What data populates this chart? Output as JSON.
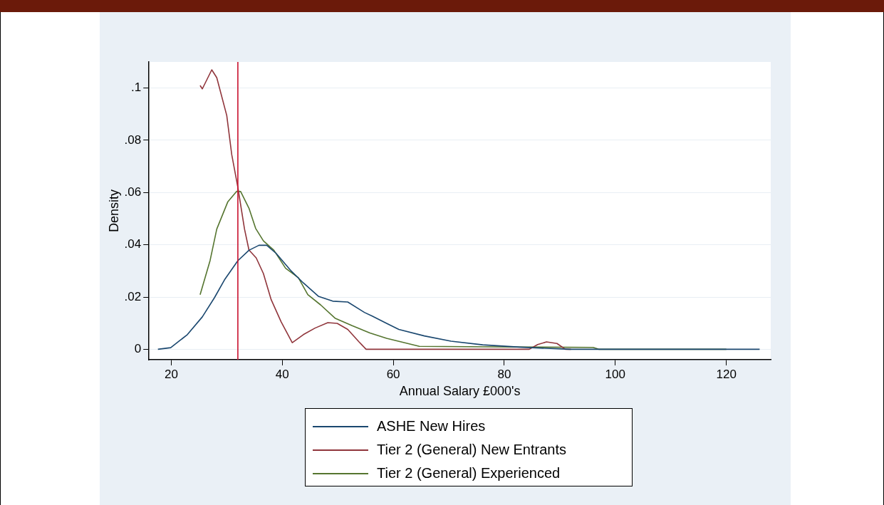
{
  "chart_data": {
    "type": "line",
    "xlabel": "Annual Salary £000's",
    "ylabel": "Density",
    "xlim": [
      16,
      128
    ],
    "ylim": [
      -0.004,
      0.11
    ],
    "xticks": [
      20,
      40,
      60,
      80,
      100,
      120
    ],
    "yticks": [
      0,
      {
        "value": 0.02,
        "label": ".02"
      },
      {
        "value": 0.04,
        "label": ".04"
      },
      {
        "value": 0.06,
        "label": ".06"
      },
      {
        "value": 0.08,
        "label": ".08"
      },
      {
        "value": 0.1,
        "label": ".1"
      }
    ],
    "grid": "y",
    "legend": "bottom",
    "marker": "none",
    "line_style": "solid",
    "ref_lines": [
      {
        "axis": "x",
        "value": 32,
        "color": "#c8102e"
      }
    ],
    "series": [
      {
        "name": "ASHE New Hires",
        "color": "#1a476f",
        "x": [
          17.6,
          19.9,
          22.9,
          25.6,
          27.8,
          29.6,
          32,
          34,
          35.8,
          37.2,
          38.9,
          41.5,
          43.8,
          46.5,
          49.1,
          51.8,
          54.8,
          56.2,
          58.8,
          61,
          65.6,
          70.4,
          76.1,
          82.8,
          91.8,
          126
        ],
        "values": [
          0,
          0.0006,
          0.0056,
          0.0124,
          0.0198,
          0.0266,
          0.0339,
          0.0379,
          0.0398,
          0.0398,
          0.0367,
          0.0302,
          0.0254,
          0.0203,
          0.0184,
          0.0181,
          0.0141,
          0.0127,
          0.0099,
          0.0076,
          0.0051,
          0.0031,
          0.0017,
          0.0008,
          0,
          0
        ]
      },
      {
        "name": "Tier 2 (General) New Entrants",
        "color": "#90353b",
        "x": [
          25.2,
          25.6,
          27.3,
          28.2,
          30,
          30.9,
          32,
          33.2,
          34,
          35.3,
          36.6,
          38,
          39.8,
          41.8,
          43.8,
          45.9,
          48.2,
          49.9,
          51.8,
          53.8,
          55.1,
          84.5,
          86,
          87.6,
          89.5,
          91,
          92
        ],
        "values": [
          0.101,
          0.0997,
          0.107,
          0.104,
          0.0895,
          0.0745,
          0.062,
          0.046,
          0.038,
          0.035,
          0.029,
          0.019,
          0.0105,
          0.0025,
          0.0056,
          0.0081,
          0.0102,
          0.0099,
          0.0076,
          0.0029,
          0,
          0,
          0.0018,
          0.0028,
          0.0022,
          0,
          0
        ]
      },
      {
        "name": "Tier 2 (General) Experienced",
        "color": "#55752f",
        "x": [
          25.2,
          27,
          28.2,
          30.2,
          31.8,
          32.5,
          34,
          35.2,
          36.6,
          38.5,
          40.6,
          42.9,
          44.6,
          46.9,
          49.5,
          52.6,
          55.8,
          58.8,
          64.7,
          78,
          96,
          97,
          120
        ],
        "values": [
          0.0209,
          0.034,
          0.046,
          0.0565,
          0.0605,
          0.0604,
          0.054,
          0.0463,
          0.0415,
          0.0379,
          0.031,
          0.0274,
          0.0209,
          0.017,
          0.0119,
          0.009,
          0.0062,
          0.0042,
          0.0011,
          0.0009,
          0.0007,
          0,
          0
        ]
      }
    ]
  }
}
